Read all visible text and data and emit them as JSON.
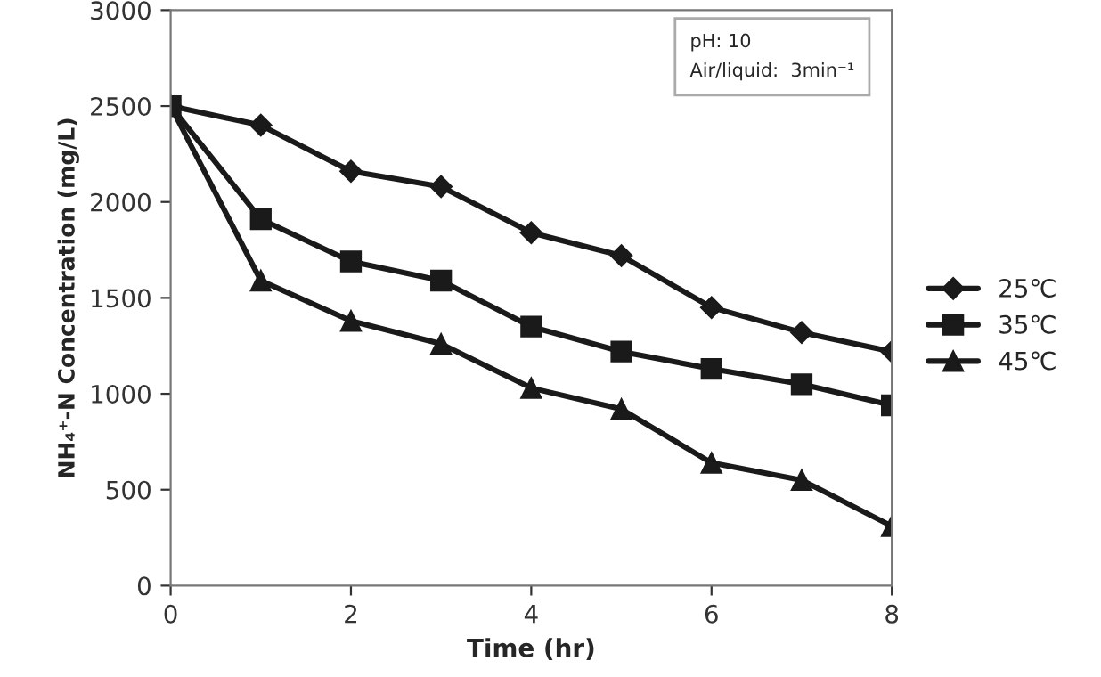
{
  "chart_data": {
    "type": "line",
    "xlabel": "Time (hr)",
    "ylabel": "NH₄⁺-N Concentration (mg/L)",
    "x": [
      0,
      1,
      2,
      3,
      4,
      5,
      6,
      7,
      8
    ],
    "series": [
      {
        "name": "25℃",
        "color": "#1a1a1a",
        "marker": "diamond",
        "values": [
          2500,
          2400,
          2160,
          2080,
          1840,
          1720,
          1450,
          1320,
          1220
        ]
      },
      {
        "name": "35℃",
        "color": "#1a1a1a",
        "marker": "square",
        "values": [
          2500,
          1910,
          1690,
          1590,
          1350,
          1220,
          1130,
          1050,
          940
        ]
      },
      {
        "name": "45℃",
        "color": "#1a1a1a",
        "marker": "triangle",
        "values": [
          2500,
          1590,
          1380,
          1260,
          1030,
          920,
          640,
          550,
          310
        ]
      }
    ],
    "xlim": [
      0,
      8
    ],
    "xticks": [
      0,
      2,
      4,
      6,
      8
    ],
    "ylim": [
      0,
      3000
    ],
    "yticks": [
      0,
      500,
      1000,
      1500,
      2000,
      2500,
      3000
    ],
    "annotations": [
      "pH: 10",
      "Air/liquid:  3min⁻¹"
    ],
    "grid": false,
    "legend": "right",
    "line_style": "solid"
  }
}
